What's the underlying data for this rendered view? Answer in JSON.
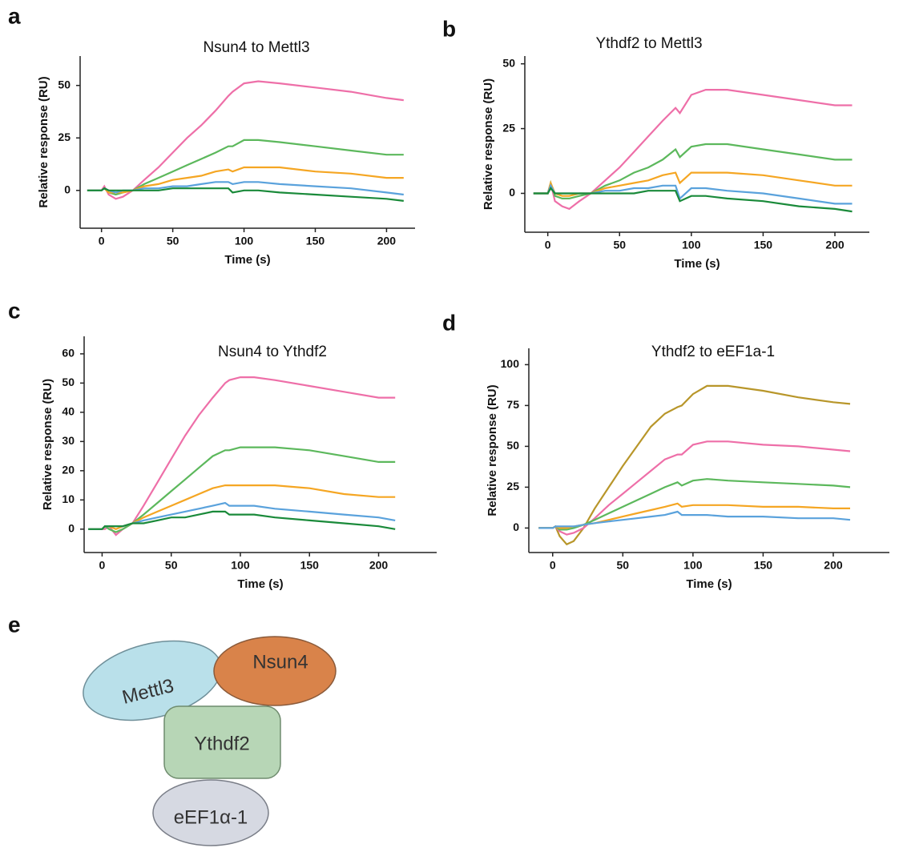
{
  "chart_data": [
    {
      "type": "line",
      "panel": "a",
      "title": "Nsun4 to Mettl3",
      "xlabel": "Time (s)",
      "ylabel": "Relative response (RU)",
      "x": [
        -10,
        0,
        2,
        5,
        10,
        15,
        22,
        30,
        40,
        50,
        60,
        70,
        80,
        89,
        92,
        100,
        110,
        125,
        150,
        175,
        200,
        212
      ],
      "xlim": [
        -15,
        220
      ],
      "xticks": [
        0,
        50,
        100,
        150,
        200
      ],
      "ylim": [
        -18,
        64
      ],
      "yticks": [
        0,
        25,
        50
      ],
      "series": [
        {
          "color": "#ee6fa8",
          "values": [
            0,
            0,
            2,
            -2,
            -4,
            -3,
            0,
            5,
            11,
            18,
            25,
            31,
            38,
            45,
            47,
            51,
            52,
            51,
            49,
            47,
            44,
            43
          ]
        },
        {
          "color": "#5cb85c",
          "values": [
            0,
            0,
            1,
            -1,
            -2,
            -1,
            0,
            3,
            6,
            9,
            12,
            15,
            18,
            21,
            21,
            24,
            24,
            23,
            21,
            19,
            17,
            17
          ]
        },
        {
          "color": "#f5a623",
          "values": [
            0,
            0,
            1,
            -1,
            -1,
            -1,
            0,
            2,
            3,
            5,
            6,
            7,
            9,
            10,
            9,
            11,
            11,
            11,
            9,
            8,
            6,
            6
          ]
        },
        {
          "color": "#5aa2dc",
          "values": [
            0,
            0,
            1,
            0,
            -1,
            0,
            0,
            1,
            1,
            2,
            2,
            3,
            4,
            4,
            3,
            4,
            4,
            3,
            2,
            1,
            -1,
            -2
          ]
        },
        {
          "color": "#1a8a3a",
          "values": [
            0,
            0,
            1,
            0,
            0,
            0,
            0,
            0,
            0,
            1,
            1,
            1,
            1,
            1,
            -1,
            0,
            0,
            -1,
            -2,
            -3,
            -4,
            -5
          ]
        }
      ]
    },
    {
      "type": "line",
      "panel": "b",
      "title": "Ythdf2 to Mettl3",
      "xlabel": "Time (s)",
      "ylabel": "Relative response (RU)",
      "x": [
        -10,
        0,
        2,
        5,
        10,
        15,
        22,
        30,
        40,
        50,
        60,
        70,
        80,
        89,
        92,
        100,
        110,
        125,
        150,
        175,
        200,
        212
      ],
      "xlim": [
        -16,
        224
      ],
      "xticks": [
        0,
        50,
        100,
        150,
        200
      ],
      "ylim": [
        -15,
        53
      ],
      "yticks": [
        0,
        25,
        50
      ],
      "series": [
        {
          "color": "#ee6fa8",
          "values": [
            0,
            0,
            4,
            -3,
            -5,
            -6,
            -3,
            0,
            5,
            10,
            16,
            22,
            28,
            33,
            31,
            38,
            40,
            40,
            38,
            36,
            34,
            34
          ]
        },
        {
          "color": "#5cb85c",
          "values": [
            0,
            0,
            4,
            -1,
            -2,
            -2,
            -1,
            0,
            3,
            5,
            8,
            10,
            13,
            17,
            14,
            18,
            19,
            19,
            17,
            15,
            13,
            13
          ]
        },
        {
          "color": "#f5a623",
          "values": [
            0,
            0,
            4,
            0,
            -1,
            -1,
            0,
            0,
            2,
            3,
            4,
            5,
            7,
            8,
            4,
            8,
            8,
            8,
            7,
            5,
            3,
            3
          ]
        },
        {
          "color": "#5aa2dc",
          "values": [
            0,
            0,
            3,
            0,
            0,
            0,
            0,
            0,
            1,
            1,
            2,
            2,
            3,
            3,
            -2,
            2,
            2,
            1,
            0,
            -2,
            -4,
            -4
          ]
        },
        {
          "color": "#1a8a3a",
          "values": [
            0,
            0,
            2,
            0,
            0,
            0,
            0,
            0,
            0,
            0,
            0,
            1,
            1,
            1,
            -3,
            -1,
            -1,
            -2,
            -3,
            -5,
            -6,
            -7
          ]
        }
      ]
    },
    {
      "type": "line",
      "panel": "c",
      "title": "Nsun4 to Ythdf2",
      "xlabel": "Time (s)",
      "ylabel": "Relative response (RU)",
      "x": [
        -10,
        0,
        2,
        5,
        10,
        15,
        22,
        30,
        40,
        50,
        60,
        70,
        80,
        89,
        92,
        100,
        110,
        125,
        150,
        175,
        200,
        212
      ],
      "xlim": [
        -13,
        242
      ],
      "xticks": [
        0,
        50,
        100,
        150,
        200
      ],
      "ylim": [
        -8,
        66
      ],
      "yticks": [
        0,
        10,
        20,
        30,
        40,
        50,
        60
      ],
      "series": [
        {
          "color": "#ee6fa8",
          "values": [
            0,
            0,
            0,
            1,
            -2,
            0,
            2,
            8,
            16,
            24,
            32,
            39,
            45,
            50,
            51,
            52,
            52,
            51,
            49,
            47,
            45,
            45
          ]
        },
        {
          "color": "#5cb85c",
          "values": [
            0,
            0,
            1,
            0,
            -1,
            0,
            2,
            5,
            9,
            13,
            17,
            21,
            25,
            27,
            27,
            28,
            28,
            28,
            27,
            25,
            23,
            23
          ]
        },
        {
          "color": "#f5a623",
          "values": [
            0,
            0,
            1,
            1,
            0,
            1,
            2,
            4,
            6,
            8,
            10,
            12,
            14,
            15,
            15,
            15,
            15,
            15,
            14,
            12,
            11,
            11
          ]
        },
        {
          "color": "#5aa2dc",
          "values": [
            0,
            0,
            1,
            1,
            1,
            1,
            2,
            3,
            4,
            5,
            6,
            7,
            8,
            9,
            8,
            8,
            8,
            7,
            6,
            5,
            4,
            3
          ]
        },
        {
          "color": "#1a8a3a",
          "values": [
            0,
            0,
            1,
            1,
            1,
            1,
            2,
            2,
            3,
            4,
            4,
            5,
            6,
            6,
            5,
            5,
            5,
            4,
            3,
            2,
            1,
            0
          ]
        }
      ]
    },
    {
      "type": "line",
      "panel": "d",
      "title": "Ythdf2 to eEF1a-1",
      "xlabel": "Time (s)",
      "ylabel": "Relative response (RU)",
      "x": [
        -10,
        0,
        2,
        5,
        10,
        15,
        22,
        30,
        40,
        50,
        60,
        70,
        80,
        89,
        92,
        100,
        110,
        125,
        150,
        175,
        200,
        212
      ],
      "xlim": [
        -17,
        240
      ],
      "xticks": [
        0,
        50,
        100,
        150,
        200
      ],
      "ylim": [
        -15,
        110
      ],
      "yticks": [
        0,
        25,
        50,
        75,
        100
      ],
      "series": [
        {
          "color": "#b8962a",
          "values": [
            0,
            0,
            1,
            -5,
            -10,
            -8,
            0,
            12,
            25,
            38,
            50,
            62,
            70,
            74,
            75,
            82,
            87,
            87,
            84,
            80,
            77,
            76
          ]
        },
        {
          "color": "#ee6fa8",
          "values": [
            0,
            0,
            1,
            -2,
            -4,
            -3,
            0,
            6,
            14,
            21,
            28,
            35,
            42,
            45,
            45,
            51,
            53,
            53,
            51,
            50,
            48,
            47
          ]
        },
        {
          "color": "#5cb85c",
          "values": [
            0,
            0,
            1,
            -1,
            -1,
            0,
            2,
            5,
            9,
            13,
            17,
            21,
            25,
            28,
            26,
            29,
            30,
            29,
            28,
            27,
            26,
            25
          ]
        },
        {
          "color": "#f5a623",
          "values": [
            0,
            0,
            1,
            0,
            0,
            1,
            2,
            3,
            5,
            7,
            9,
            11,
            13,
            15,
            13,
            14,
            14,
            14,
            13,
            13,
            12,
            12
          ]
        },
        {
          "color": "#5aa2dc",
          "values": [
            0,
            0,
            1,
            1,
            1,
            1,
            2,
            3,
            4,
            5,
            6,
            7,
            8,
            10,
            8,
            8,
            8,
            7,
            7,
            6,
            6,
            5
          ]
        }
      ]
    }
  ],
  "diagram": {
    "panel": "e",
    "nodes": [
      "Mettl3",
      "Nsun4",
      "Ythdf2",
      "eEF1α-1"
    ]
  }
}
